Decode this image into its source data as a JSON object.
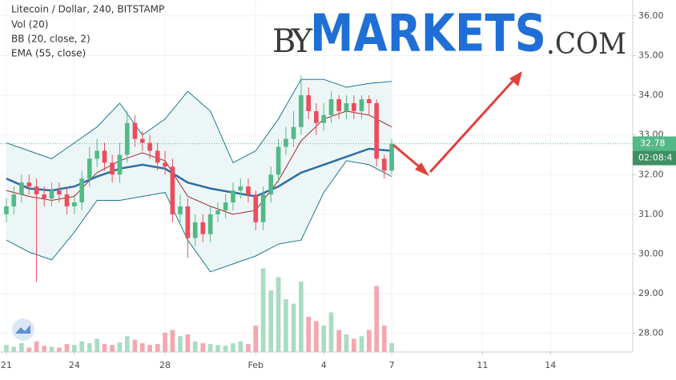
{
  "chart_data": {
    "type": "candlestick",
    "title": "Litecoin / Dollar, 240, BITSTAMP",
    "x": [
      0,
      0.33,
      0.67,
      1,
      1.33,
      1.67,
      2,
      2.33,
      2.67,
      3,
      3.33,
      3.67,
      4,
      4.33,
      4.67,
      5,
      5.33,
      5.67,
      6,
      6.33,
      6.67,
      7,
      7.33,
      7.67,
      8,
      8.33,
      8.67,
      9,
      9.33,
      9.67,
      10,
      10.33,
      10.67,
      11,
      11.33,
      11.67,
      12,
      12.33,
      12.67,
      13,
      13.33,
      13.67,
      14,
      14.33,
      14.67,
      15,
      15.33,
      15.67,
      16,
      16.33,
      16.67,
      17
    ],
    "open": [
      31.0,
      31.2,
      31.5,
      31.8,
      31.7,
      31.5,
      31.4,
      31.6,
      31.5,
      31.2,
      31.3,
      31.9,
      32.4,
      32.6,
      32.3,
      32.0,
      32.5,
      33.3,
      32.9,
      32.8,
      32.6,
      32.3,
      32.2,
      31.0,
      31.2,
      30.4,
      30.8,
      30.5,
      31.0,
      31.1,
      31.3,
      31.6,
      31.7,
      31.5,
      30.8,
      31.5,
      32.0,
      32.7,
      32.9,
      33.2,
      34.0,
      33.6,
      33.3,
      33.5,
      33.9,
      33.6,
      33.8,
      33.6,
      33.9,
      33.8,
      32.4,
      32.1
    ],
    "high": [
      31.4,
      31.7,
      32.0,
      32.0,
      31.9,
      31.7,
      31.8,
      31.8,
      31.7,
      31.5,
      32.1,
      32.7,
      32.9,
      32.8,
      32.5,
      32.8,
      33.6,
      33.5,
      33.1,
      33.0,
      32.8,
      32.6,
      32.4,
      31.5,
      31.4,
      31.0,
      31.0,
      31.2,
      31.3,
      31.5,
      31.8,
      31.9,
      31.9,
      31.6,
      31.7,
      32.2,
      32.9,
      33.2,
      33.6,
      34.5,
      34.2,
      33.8,
      33.8,
      34.1,
      34.0,
      34.0,
      34.0,
      34.0,
      34.0,
      33.9,
      32.5,
      32.9
    ],
    "low": [
      30.8,
      31.0,
      31.3,
      31.5,
      29.3,
      31.2,
      31.2,
      31.3,
      31.0,
      31.0,
      31.1,
      31.7,
      32.2,
      32.1,
      31.8,
      31.8,
      32.3,
      32.7,
      32.6,
      32.4,
      32.1,
      32.0,
      30.8,
      30.8,
      29.9,
      30.2,
      30.3,
      30.3,
      30.8,
      30.9,
      31.1,
      31.4,
      31.3,
      30.6,
      30.6,
      31.3,
      31.8,
      32.5,
      32.7,
      33.0,
      33.4,
      33.0,
      33.1,
      33.3,
      33.4,
      33.4,
      33.4,
      33.4,
      33.5,
      32.2,
      31.9,
      32.0
    ],
    "close": [
      31.2,
      31.5,
      31.8,
      31.7,
      31.5,
      31.4,
      31.6,
      31.5,
      31.2,
      31.3,
      31.9,
      32.4,
      32.6,
      32.3,
      32.0,
      32.5,
      33.3,
      32.9,
      32.8,
      32.6,
      32.3,
      32.2,
      31.0,
      31.2,
      30.4,
      30.8,
      30.5,
      31.0,
      31.1,
      31.3,
      31.6,
      31.7,
      31.5,
      30.8,
      31.5,
      32.0,
      32.7,
      32.9,
      33.2,
      34.0,
      33.6,
      33.3,
      33.5,
      33.9,
      33.6,
      33.8,
      33.6,
      33.9,
      33.8,
      32.4,
      32.1,
      32.78
    ],
    "up_color": "#53b987",
    "down_color": "#eb4d5c",
    "volume": {
      "name": "Vol (20)",
      "vlim": [
        0,
        400
      ],
      "up_color": "#a9dcc3",
      "down_color": "#f5a6ae",
      "values": [
        8,
        6,
        10,
        5,
        12,
        7,
        6,
        5,
        9,
        8,
        12,
        10,
        15,
        9,
        8,
        11,
        18,
        14,
        10,
        8,
        9,
        22,
        25,
        18,
        20,
        12,
        10,
        9,
        8,
        7,
        10,
        12,
        9,
        30,
        95,
        70,
        85,
        60,
        55,
        80,
        40,
        35,
        30,
        45,
        25,
        20,
        15,
        18,
        25,
        75,
        30,
        10
      ]
    },
    "indicators": [
      {
        "name": "BB (20, close, 2)",
        "x": [
          0,
          1,
          2,
          3,
          4,
          5,
          6,
          7,
          8,
          9,
          10,
          11,
          12,
          13,
          14,
          15,
          16,
          17
        ],
        "upper": [
          32.8,
          32.6,
          32.4,
          32.8,
          33.2,
          33.8,
          33.0,
          33.4,
          34.1,
          33.6,
          32.3,
          32.6,
          33.4,
          34.4,
          34.4,
          34.2,
          34.3,
          34.35
        ],
        "basis": [
          31.6,
          31.45,
          31.35,
          31.45,
          32.05,
          32.35,
          32.55,
          32.35,
          31.45,
          31.2,
          31.0,
          31.1,
          31.85,
          32.85,
          33.4,
          33.6,
          33.5,
          33.2
        ],
        "lower": [
          30.35,
          30.05,
          29.85,
          30.55,
          31.35,
          31.35,
          31.45,
          31.55,
          30.35,
          29.55,
          29.75,
          29.95,
          30.25,
          30.35,
          31.55,
          32.35,
          32.25,
          31.95
        ],
        "band_color": "#1f7a8c",
        "basis_color": "#a0282d",
        "fill": "#e8f4f4"
      },
      {
        "name": "EMA (55, close)",
        "x": [
          0,
          1,
          2,
          3,
          4,
          5,
          6,
          7,
          8,
          9,
          10,
          11,
          12,
          13,
          14,
          15,
          16,
          17
        ],
        "values": [
          31.9,
          31.65,
          31.6,
          31.7,
          31.95,
          32.15,
          32.25,
          32.15,
          31.8,
          31.65,
          31.55,
          31.45,
          31.7,
          32.05,
          32.25,
          32.45,
          32.65,
          32.6
        ],
        "color": "#2e6da4"
      }
    ],
    "last_price": 32.78,
    "countdown": "02:08:4",
    "ylim": [
      27.53,
      36.4
    ],
    "yticks": [
      {
        "value": 28,
        "label": "28.00"
      },
      {
        "value": 29,
        "label": "29.00"
      },
      {
        "value": 30,
        "label": "30.00"
      },
      {
        "value": 31,
        "label": "31.00"
      },
      {
        "value": 32,
        "label": "32.00"
      },
      {
        "value": 33,
        "label": "33.00"
      },
      {
        "value": 34,
        "label": "34.00"
      },
      {
        "value": 35,
        "label": "35.00"
      },
      {
        "value": 36,
        "label": "36.00"
      }
    ],
    "xlim": [
      -0.28,
      27.63
    ],
    "xticks": [
      {
        "value": 0,
        "label": "21"
      },
      {
        "value": 3,
        "label": "24"
      },
      {
        "value": 7,
        "label": "28"
      },
      {
        "value": 11,
        "label": "Feb"
      },
      {
        "value": 14,
        "label": "4"
      },
      {
        "value": 17,
        "label": "7"
      },
      {
        "value": 21,
        "label": "11"
      },
      {
        "value": 24,
        "label": "14"
      }
    ],
    "grid": true,
    "watermark": [
      "BY",
      "MARKETS",
      ".COM"
    ]
  }
}
